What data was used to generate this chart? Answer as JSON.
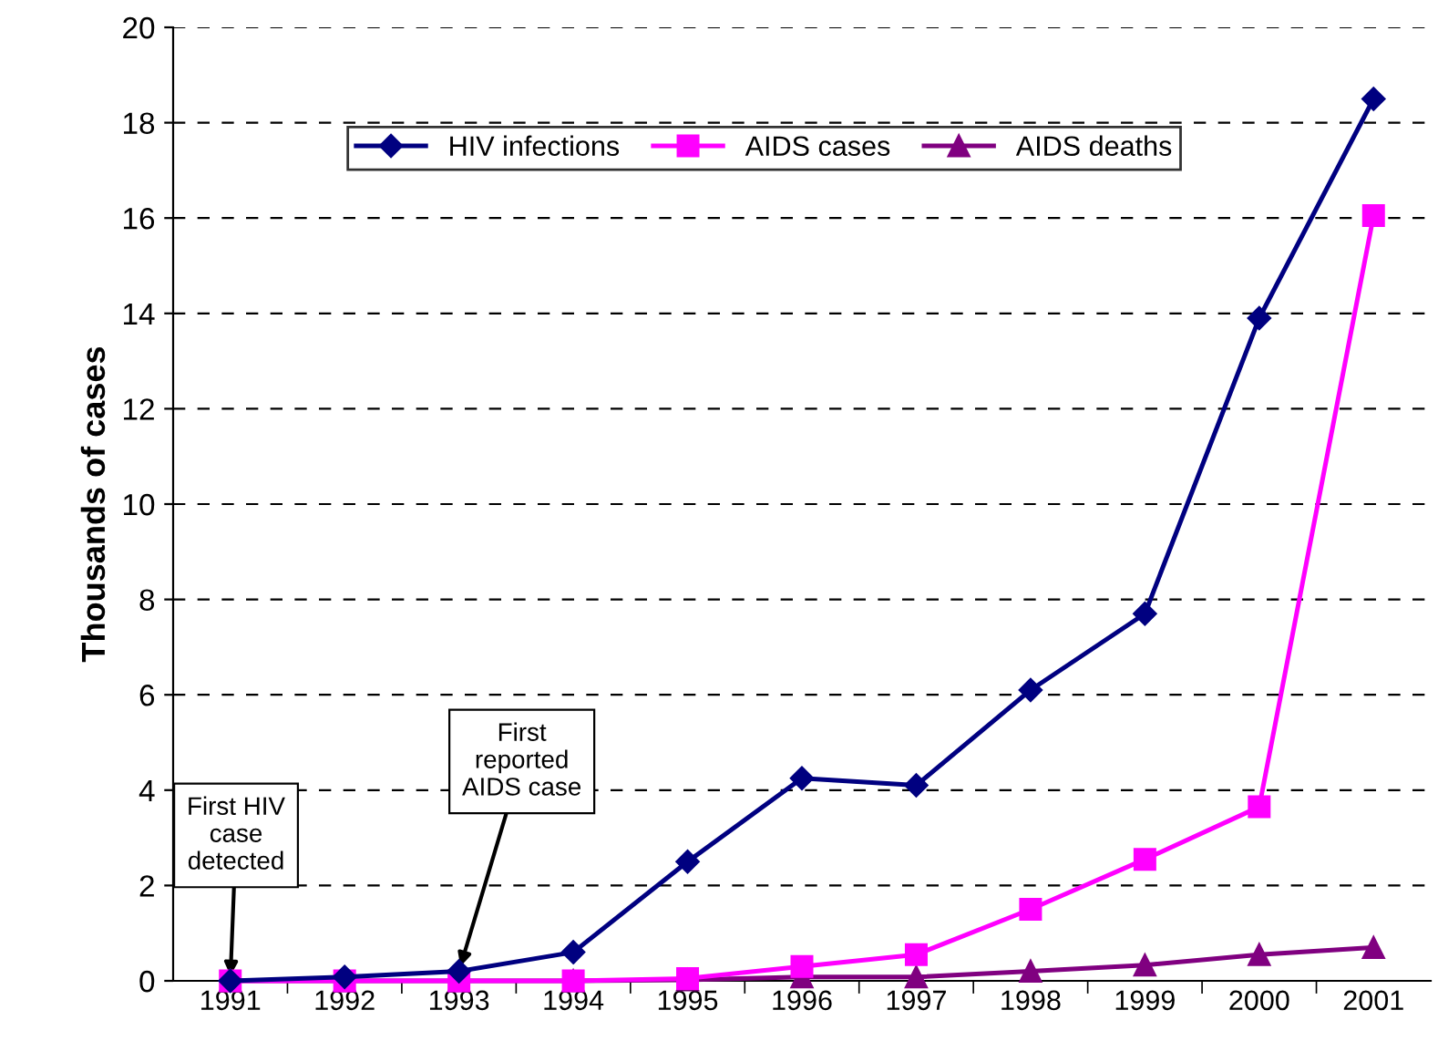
{
  "chart_data": {
    "type": "line",
    "ylabel": "Thousands of cases",
    "categories": [
      "1991",
      "1992",
      "1993",
      "1994",
      "1995",
      "1996",
      "1997",
      "1998",
      "1999",
      "2000",
      "2001"
    ],
    "series": [
      {
        "name": "HIV infections",
        "color": "#000080",
        "marker": "diamond",
        "values": [
          0,
          0.08,
          0.2,
          0.6,
          2.5,
          4.25,
          4.1,
          6.1,
          7.7,
          13.9,
          18.5
        ]
      },
      {
        "name": "AIDS cases",
        "color": "#ff00ff",
        "marker": "square",
        "values": [
          0,
          0,
          0,
          0,
          0.05,
          0.3,
          0.55,
          1.5,
          2.55,
          3.65,
          16.05
        ]
      },
      {
        "name": "AIDS deaths",
        "color": "#800080",
        "marker": "triangle",
        "values": [
          0,
          0,
          0,
          0,
          0.02,
          0.08,
          0.08,
          0.2,
          0.33,
          0.55,
          0.7
        ]
      }
    ],
    "ylim": [
      0,
      20
    ],
    "yticks": [
      0,
      2,
      4,
      6,
      8,
      10,
      12,
      14,
      16,
      18,
      20
    ],
    "grid": "y",
    "legend": "top",
    "annotations": [
      {
        "text": "First HIV\ncase\ndetected",
        "x": "1991",
        "y": 0
      },
      {
        "text": "First\nreported\nAIDS case",
        "x": "1993",
        "y": 0.2
      }
    ]
  }
}
